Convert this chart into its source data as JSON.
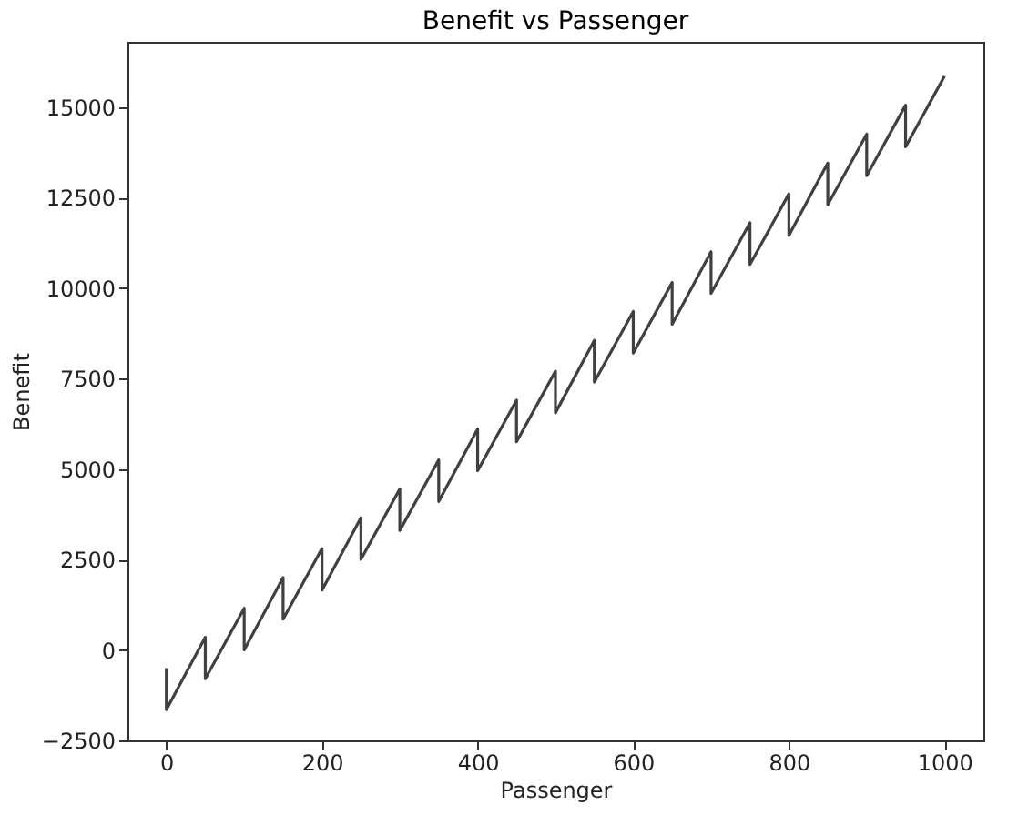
{
  "chart_data": {
    "type": "line",
    "title": "Benefit vs Passenger",
    "xlabel": "Passenger",
    "ylabel": "Benefit",
    "series": [
      {
        "color": "#404040",
        "x": [
          0,
          0,
          50,
          50,
          100,
          100,
          150,
          150,
          200,
          200,
          250,
          250,
          300,
          300,
          350,
          350,
          400,
          400,
          450,
          450,
          500,
          500,
          550,
          550,
          600,
          600,
          650,
          650,
          700,
          700,
          750,
          750,
          800,
          800,
          850,
          850,
          900,
          900,
          950,
          950,
          1000
        ],
        "values": [
          -500,
          -1650,
          350,
          -800,
          1150,
          0,
          2000,
          850,
          2800,
          1650,
          3650,
          2500,
          4450,
          3300,
          5250,
          4100,
          6100,
          4950,
          6900,
          5750,
          7700,
          6550,
          8550,
          7400,
          9350,
          8200,
          10150,
          9000,
          11000,
          9850,
          11800,
          10650,
          12600,
          11450,
          13450,
          12300,
          14250,
          13100,
          15050,
          13900,
          15850
        ]
      }
    ],
    "xlim": [
      -50,
      1050
    ],
    "xticks": [
      0,
      200,
      400,
      600,
      800,
      1000
    ],
    "ylim": [
      -2500,
      16800
    ],
    "yticks": [
      -2500,
      0,
      2500,
      5000,
      7500,
      10000,
      12500,
      15000
    ],
    "grid": false,
    "legend": false
  }
}
